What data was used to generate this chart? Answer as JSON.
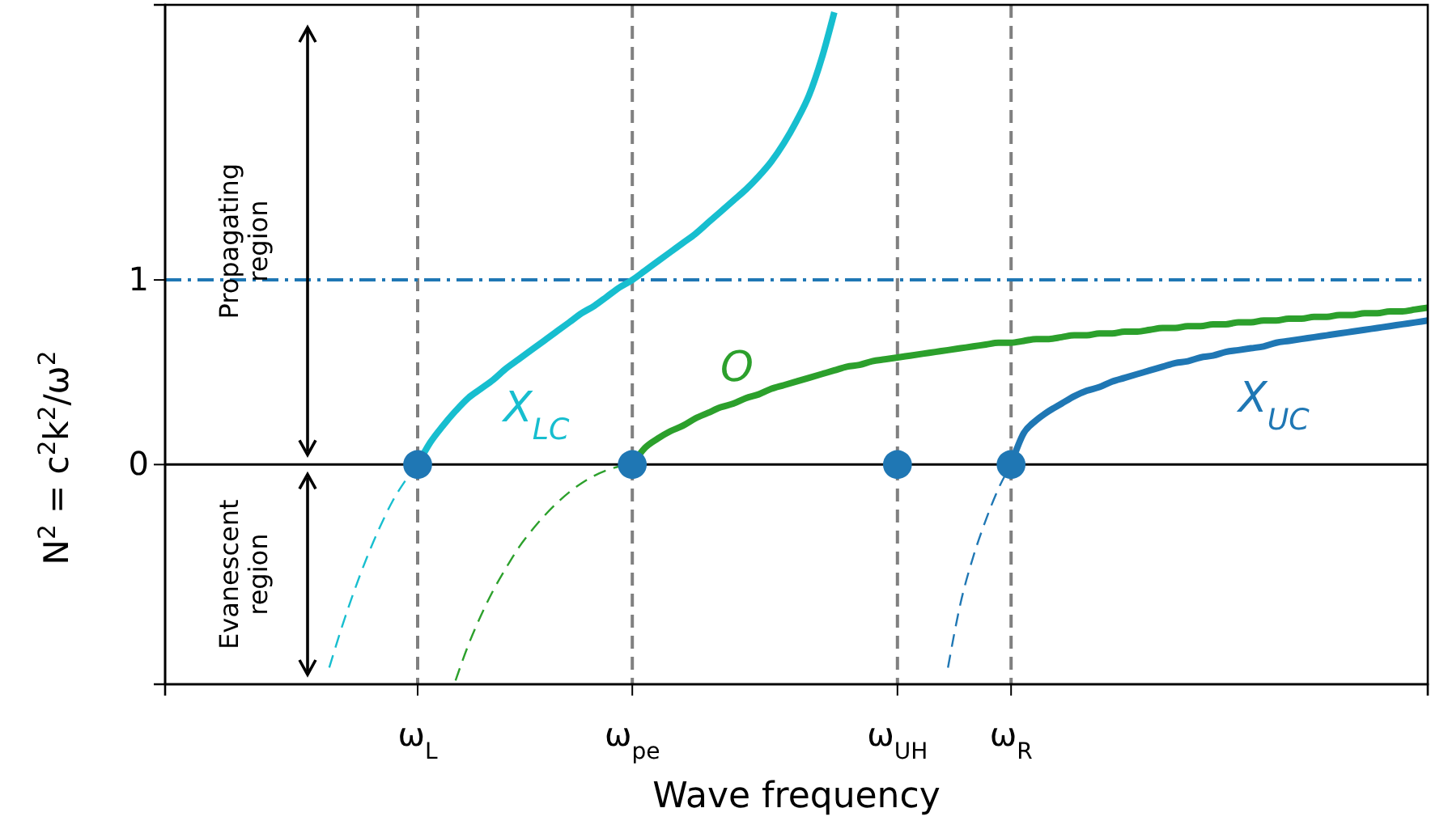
{
  "chart_data": {
    "type": "line",
    "xlabel": "Wave frequency",
    "ylabel": "N$^{2}$ = c$^{2}$k$^{2}$/ω$^{2}$",
    "categories": [
      null,
      null,
      null,
      null,
      null,
      null,
      null,
      null,
      null,
      null,
      null,
      null,
      null,
      null,
      null,
      null,
      null,
      null,
      null,
      null,
      "ω$_{L}$",
      null,
      null,
      null,
      null,
      null,
      null,
      null,
      null,
      null,
      null,
      null,
      null,
      null,
      null,
      null,
      null,
      "ω$_{pe}$",
      null,
      null,
      null,
      null,
      null,
      null,
      null,
      null,
      null,
      null,
      null,
      null,
      null,
      null,
      null,
      null,
      null,
      null,
      null,
      null,
      "ω$_{UH}$",
      null,
      null,
      null,
      null,
      null,
      null,
      null,
      null,
      "ω$_{R}$",
      null,
      null,
      null,
      null,
      null,
      null,
      null,
      null,
      null,
      null,
      null,
      null,
      null,
      null,
      null,
      null,
      null,
      null,
      null,
      null,
      null,
      null,
      null,
      null,
      null,
      null,
      null,
      null,
      null,
      null,
      null,
      null,
      null
    ],
    "ylim": [
      -1.19,
      2.49
    ],
    "yticks": [
      0,
      1
    ],
    "grid": "x",
    "legend": false,
    "series": [
      {
        "name": "X$_{LC}$",
        "color": "#17becf",
        "line_style": "solid",
        "values": [
          null,
          null,
          null,
          null,
          null,
          null,
          null,
          null,
          null,
          null,
          null,
          null,
          null,
          null,
          null,
          null,
          null,
          null,
          null,
          null,
          0,
          0.12,
          0.21,
          0.29,
          0.36,
          0.41,
          0.46,
          0.52,
          0.57,
          0.62,
          0.67,
          0.72,
          0.77,
          0.82,
          0.86,
          0.91,
          0.96,
          1.0,
          1.05,
          1.1,
          1.15,
          1.2,
          1.25,
          1.31,
          1.37,
          1.43,
          1.49,
          1.56,
          1.64,
          1.74,
          1.86,
          2.0,
          2.2,
          2.45,
          null,
          null,
          null,
          null,
          null,
          null,
          null,
          null,
          null,
          null,
          null,
          null,
          null,
          null,
          null,
          null,
          null,
          null,
          null,
          null,
          null,
          null,
          null,
          null,
          null,
          null,
          null,
          null,
          null,
          null,
          null,
          null,
          null,
          null,
          null,
          null,
          null,
          null,
          null,
          null,
          null,
          null,
          null,
          null,
          null,
          null,
          null
        ]
      },
      {
        "color": "#17becf",
        "line_style": "dashed",
        "values": [
          null,
          null,
          null,
          null,
          null,
          null,
          null,
          null,
          null,
          null,
          null,
          null,
          null,
          -1.1,
          -0.88,
          -0.68,
          -0.5,
          -0.34,
          -0.2,
          -0.09,
          0,
          null,
          null,
          null,
          null,
          null,
          null,
          null,
          null,
          null,
          null,
          null,
          null,
          null,
          null,
          null,
          null,
          null,
          null,
          null,
          null,
          null,
          null,
          null,
          null,
          null,
          null,
          null,
          null,
          null,
          null,
          null,
          null,
          null,
          null,
          null,
          null,
          null,
          null,
          null,
          null,
          null,
          null,
          null,
          null,
          null,
          null,
          null,
          null,
          null,
          null,
          null,
          null,
          null,
          null,
          null,
          null,
          null,
          null,
          null,
          null,
          null,
          null,
          null,
          null,
          null,
          null,
          null,
          null,
          null,
          null,
          null,
          null,
          null,
          null,
          null,
          null,
          null,
          null,
          null,
          null
        ]
      },
      {
        "name": "O",
        "color": "#2ca02c",
        "line_style": "solid",
        "values": [
          null,
          null,
          null,
          null,
          null,
          null,
          null,
          null,
          null,
          null,
          null,
          null,
          null,
          null,
          null,
          null,
          null,
          null,
          null,
          null,
          null,
          null,
          null,
          null,
          null,
          null,
          null,
          null,
          null,
          null,
          null,
          null,
          null,
          null,
          null,
          null,
          null,
          0,
          0.09,
          0.14,
          0.18,
          0.21,
          0.25,
          0.28,
          0.31,
          0.33,
          0.36,
          0.38,
          0.41,
          0.43,
          0.45,
          0.47,
          0.49,
          0.51,
          0.53,
          0.54,
          0.56,
          0.57,
          0.58,
          0.59,
          0.6,
          0.61,
          0.62,
          0.63,
          0.64,
          0.65,
          0.66,
          0.66,
          0.67,
          0.68,
          0.68,
          0.69,
          0.7,
          0.7,
          0.71,
          0.71,
          0.72,
          0.72,
          0.73,
          0.74,
          0.74,
          0.75,
          0.75,
          0.76,
          0.76,
          0.77,
          0.77,
          0.78,
          0.78,
          0.79,
          0.79,
          0.8,
          0.8,
          0.81,
          0.81,
          0.82,
          0.82,
          0.83,
          0.83,
          0.84,
          0.85
        ]
      },
      {
        "color": "#2ca02c",
        "line_style": "dashed",
        "values": [
          null,
          null,
          null,
          null,
          null,
          null,
          null,
          null,
          null,
          null,
          null,
          null,
          null,
          null,
          null,
          null,
          null,
          null,
          null,
          null,
          null,
          null,
          null,
          -1.17,
          -0.98,
          -0.82,
          -0.68,
          -0.56,
          -0.45,
          -0.36,
          -0.28,
          -0.21,
          -0.15,
          -0.1,
          -0.06,
          -0.03,
          -0.01,
          0,
          null,
          null,
          null,
          null,
          null,
          null,
          null,
          null,
          null,
          null,
          null,
          null,
          null,
          null,
          null,
          null,
          null,
          null,
          null,
          null,
          null,
          null,
          null,
          null,
          null,
          null,
          null,
          null,
          null,
          null,
          null,
          null,
          null,
          null,
          null,
          null,
          null,
          null,
          null,
          null,
          null,
          null,
          null,
          null,
          null,
          null,
          null,
          null,
          null,
          null,
          null,
          null,
          null,
          null,
          null,
          null,
          null,
          null,
          null,
          null,
          null,
          null,
          null
        ]
      },
      {
        "name": "X$_{UC}$",
        "color": "#1f77b4",
        "line_style": "solid",
        "values": [
          null,
          null,
          null,
          null,
          null,
          null,
          null,
          null,
          null,
          null,
          null,
          null,
          null,
          null,
          null,
          null,
          null,
          null,
          null,
          null,
          null,
          null,
          null,
          null,
          null,
          null,
          null,
          null,
          null,
          null,
          null,
          null,
          null,
          null,
          null,
          null,
          null,
          null,
          null,
          null,
          null,
          null,
          null,
          null,
          null,
          null,
          null,
          null,
          null,
          null,
          null,
          null,
          null,
          null,
          null,
          null,
          null,
          null,
          null,
          null,
          null,
          null,
          null,
          null,
          null,
          null,
          null,
          0,
          0.17,
          0.24,
          0.29,
          0.33,
          0.37,
          0.4,
          0.42,
          0.45,
          0.47,
          0.49,
          0.51,
          0.53,
          0.55,
          0.56,
          0.58,
          0.59,
          0.61,
          0.62,
          0.63,
          0.64,
          0.66,
          0.67,
          0.68,
          0.69,
          0.7,
          0.71,
          0.72,
          0.73,
          0.74,
          0.75,
          0.76,
          0.77,
          0.78
        ]
      },
      {
        "color": "#1f77b4",
        "line_style": "dashed",
        "values": [
          null,
          null,
          null,
          null,
          null,
          null,
          null,
          null,
          null,
          null,
          null,
          null,
          null,
          null,
          null,
          null,
          null,
          null,
          null,
          null,
          null,
          null,
          null,
          null,
          null,
          null,
          null,
          null,
          null,
          null,
          null,
          null,
          null,
          null,
          null,
          null,
          null,
          null,
          null,
          null,
          null,
          null,
          null,
          null,
          null,
          null,
          null,
          null,
          null,
          null,
          null,
          null,
          null,
          null,
          null,
          null,
          null,
          null,
          null,
          null,
          null,
          null,
          -1.1,
          -0.75,
          -0.5,
          -0.3,
          -0.13,
          0,
          null,
          null,
          null,
          null,
          null,
          null,
          null,
          null,
          null,
          null,
          null,
          null,
          null,
          null,
          null,
          null,
          null,
          null,
          null,
          null,
          null,
          null,
          null,
          null,
          null,
          null,
          null,
          null,
          null,
          null,
          null,
          null,
          null
        ]
      },
      {
        "type": "scatter",
        "color": "#1f77b4",
        "marker": "circle",
        "values": [
          null,
          null,
          null,
          null,
          null,
          null,
          null,
          null,
          null,
          null,
          null,
          null,
          null,
          null,
          null,
          null,
          null,
          null,
          null,
          null,
          0,
          null,
          null,
          null,
          null,
          null,
          null,
          null,
          null,
          null,
          null,
          null,
          null,
          null,
          null,
          null,
          null,
          0,
          null,
          null,
          null,
          null,
          null,
          null,
          null,
          null,
          null,
          null,
          null,
          null,
          null,
          null,
          null,
          null,
          null,
          null,
          null,
          null,
          0,
          null,
          null,
          null,
          null,
          null,
          null,
          null,
          null,
          0,
          null,
          null,
          null,
          null,
          null,
          null,
          null,
          null,
          null,
          null,
          null,
          null,
          null,
          null,
          null,
          null,
          null,
          null,
          null,
          null,
          null,
          null,
          null,
          null,
          null,
          null,
          null,
          null,
          null,
          null,
          null,
          null,
          null
        ]
      }
    ],
    "ref_lines": [
      {
        "axis": "y",
        "value": 1,
        "color": "#1f77b4",
        "line_style": "dashdot"
      },
      {
        "axis": "y",
        "value": 0,
        "color": "#000000",
        "line_style": "solid"
      }
    ],
    "annotations": [
      "Propagating region",
      "Evanescent region"
    ]
  }
}
